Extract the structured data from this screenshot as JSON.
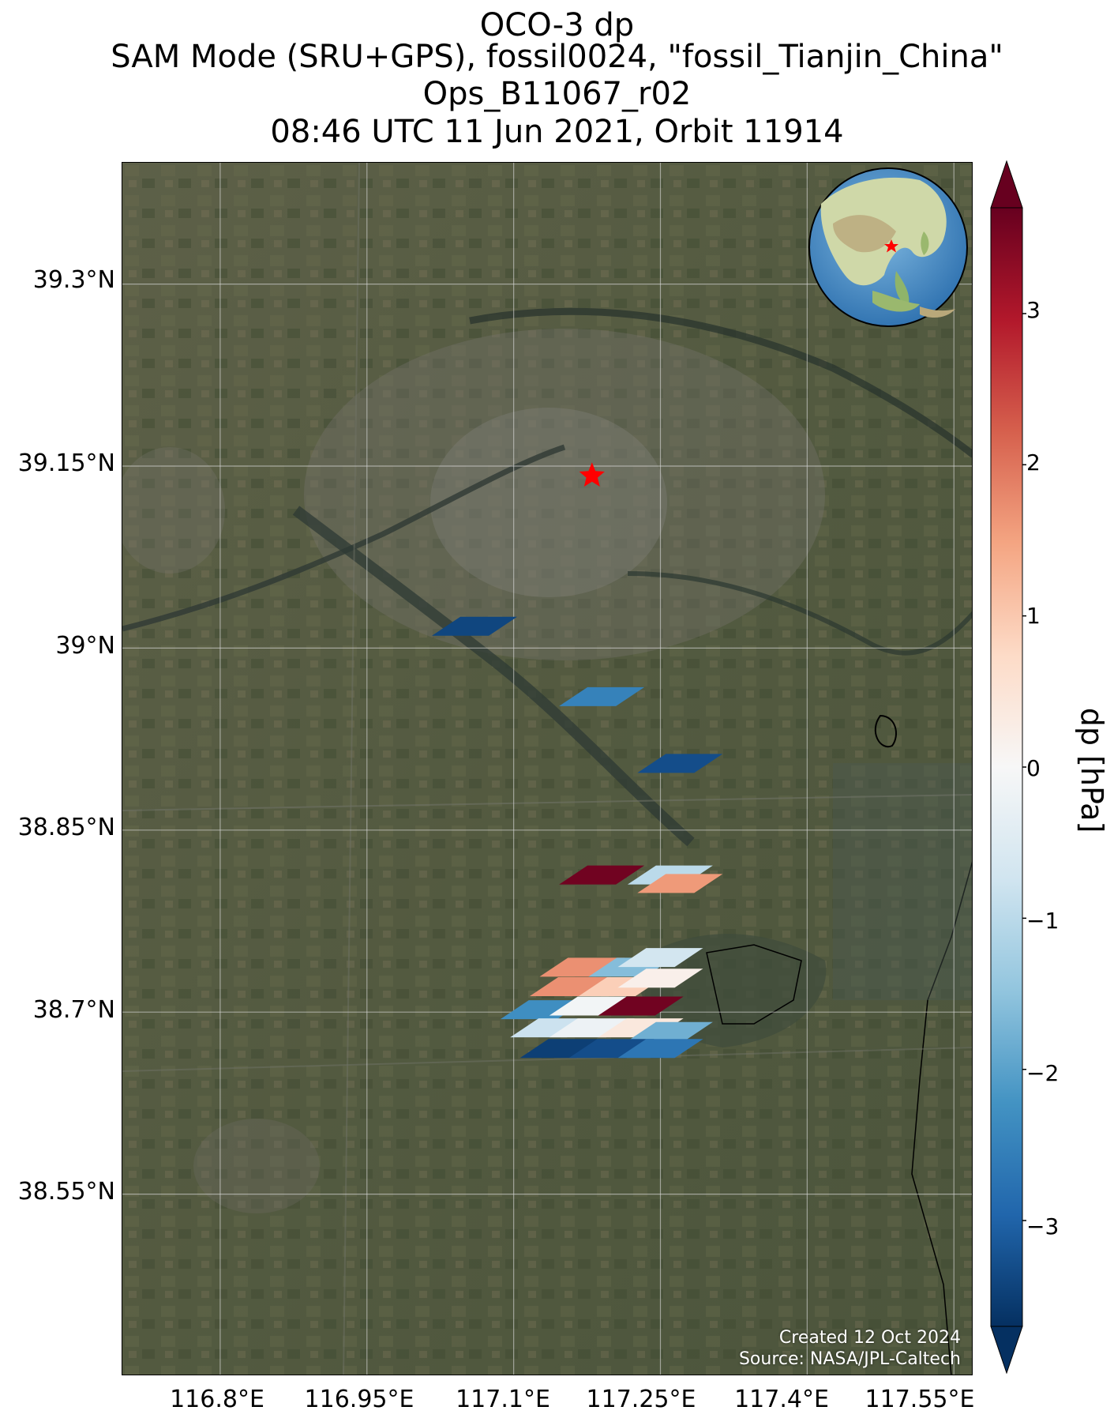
{
  "title": {
    "line1": "OCO-3 dp",
    "line2": "SAM Mode (SRU+GPS), fossil0024, \"fossil_Tianjin_China\"",
    "line3": "Ops_B11067_r02",
    "line4": "08:46 UTC 11 Jun 2021, Orbit 11914"
  },
  "axes": {
    "lat_labels": [
      "39.3°N",
      "39.15°N",
      "39°N",
      "38.85°N",
      "38.7°N",
      "38.55°N"
    ],
    "lon_labels": [
      "116.8°E",
      "116.95°E",
      "117.1°E",
      "117.25°E",
      "117.4°E",
      "117.55°E"
    ]
  },
  "credits": {
    "created": "Created 12 Oct 2024",
    "source": "Source: NASA/JPL-Caltech"
  },
  "colorbar": {
    "label": "dp [hPa]",
    "ticks": [
      "3",
      "2",
      "1",
      "0",
      "−1",
      "−2",
      "−3"
    ],
    "range": [
      -3.7,
      3.7
    ],
    "colormap": "RdBu_r"
  },
  "map": {
    "projection": "lat-lon",
    "lon_range": [
      116.7,
      117.57
    ],
    "lat_range": [
      38.4,
      39.4
    ],
    "gridlines": true,
    "basemap": "satellite imagery",
    "inset_globe": "orthographic globe centered on East Asia with target marked",
    "target": {
      "name": "fossil_Tianjin_China",
      "lon": 117.18,
      "lat": 39.142,
      "marker": "red-star"
    }
  },
  "chart_data": {
    "type": "map-footprints",
    "variable": "dp",
    "units": "hPa",
    "footprints": [
      {
        "lon": 117.06,
        "lat": 39.018,
        "dp": -3.4
      },
      {
        "lon": 117.19,
        "lat": 38.96,
        "dp": -2.5
      },
      {
        "lon": 117.27,
        "lat": 38.905,
        "dp": -3.3
      },
      {
        "lon": 117.19,
        "lat": 38.813,
        "dp": 3.6
      },
      {
        "lon": 117.26,
        "lat": 38.813,
        "dp": -1.0
      },
      {
        "lon": 117.27,
        "lat": 38.806,
        "dp": 1.6
      },
      {
        "lon": 117.17,
        "lat": 38.737,
        "dp": 1.7
      },
      {
        "lon": 117.22,
        "lat": 38.737,
        "dp": -1.6
      },
      {
        "lon": 117.25,
        "lat": 38.745,
        "dp": -0.7
      },
      {
        "lon": 117.16,
        "lat": 38.721,
        "dp": 1.7
      },
      {
        "lon": 117.21,
        "lat": 38.721,
        "dp": 0.9
      },
      {
        "lon": 117.25,
        "lat": 38.728,
        "dp": 0.2
      },
      {
        "lon": 117.13,
        "lat": 38.702,
        "dp": -2.3
      },
      {
        "lon": 117.18,
        "lat": 38.705,
        "dp": -0.1
      },
      {
        "lon": 117.23,
        "lat": 38.705,
        "dp": 3.6
      },
      {
        "lon": 117.14,
        "lat": 38.687,
        "dp": -0.8
      },
      {
        "lon": 117.18,
        "lat": 38.687,
        "dp": -0.2
      },
      {
        "lon": 117.23,
        "lat": 38.687,
        "dp": 0.4
      },
      {
        "lon": 117.26,
        "lat": 38.684,
        "dp": -1.8
      },
      {
        "lon": 117.15,
        "lat": 38.67,
        "dp": -3.5
      },
      {
        "lon": 117.2,
        "lat": 38.67,
        "dp": -3.3
      },
      {
        "lon": 117.25,
        "lat": 38.67,
        "dp": -2.7
      }
    ]
  }
}
